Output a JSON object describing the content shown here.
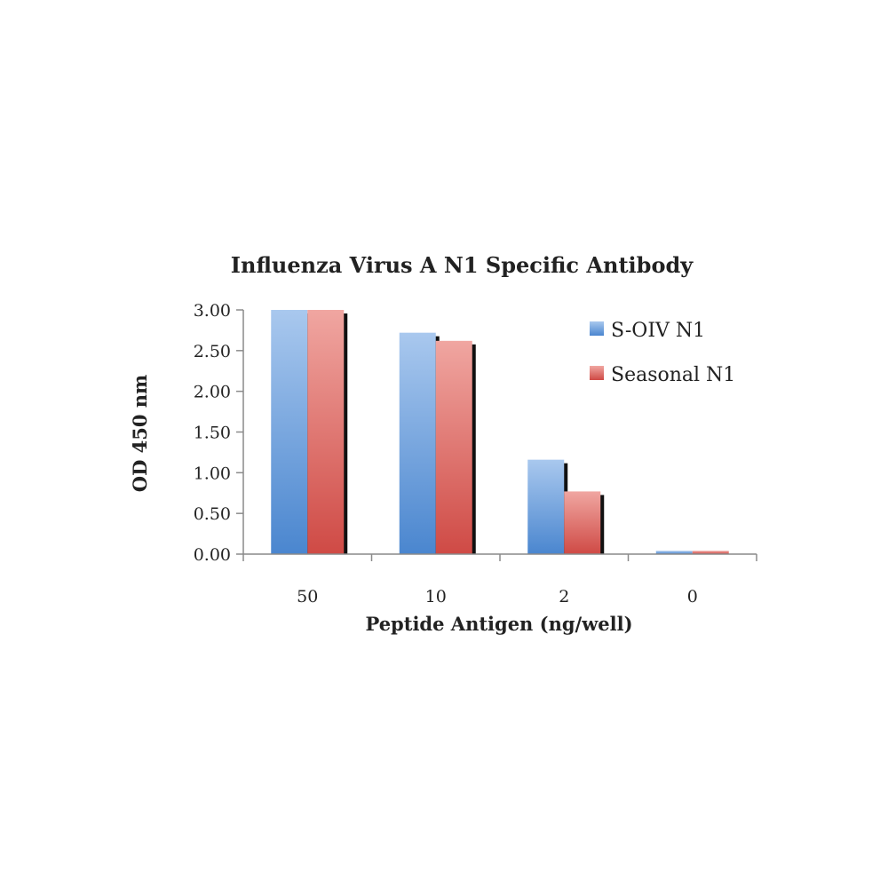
{
  "chart_data": {
    "type": "bar",
    "title": "Influenza Virus A N1 Specific Antibody",
    "xlabel": "Peptide Antigen (ng/well)",
    "ylabel": "OD 450 nm",
    "categories": [
      "50",
      "10",
      "2",
      "0"
    ],
    "series": [
      {
        "name": "S-OIV N1",
        "values": [
          3.0,
          2.72,
          1.16,
          0.04
        ],
        "color": "#5b9bd5"
      },
      {
        "name": "Seasonal N1",
        "values": [
          3.0,
          2.62,
          0.77,
          0.04
        ],
        "color": "#e06666"
      }
    ],
    "ylim": [
      0,
      3
    ],
    "yticks": [
      "0.00",
      "0.50",
      "1.00",
      "1.50",
      "2.00",
      "2.50",
      "3.00"
    ],
    "legend_position": "top-right",
    "grid": false
  }
}
